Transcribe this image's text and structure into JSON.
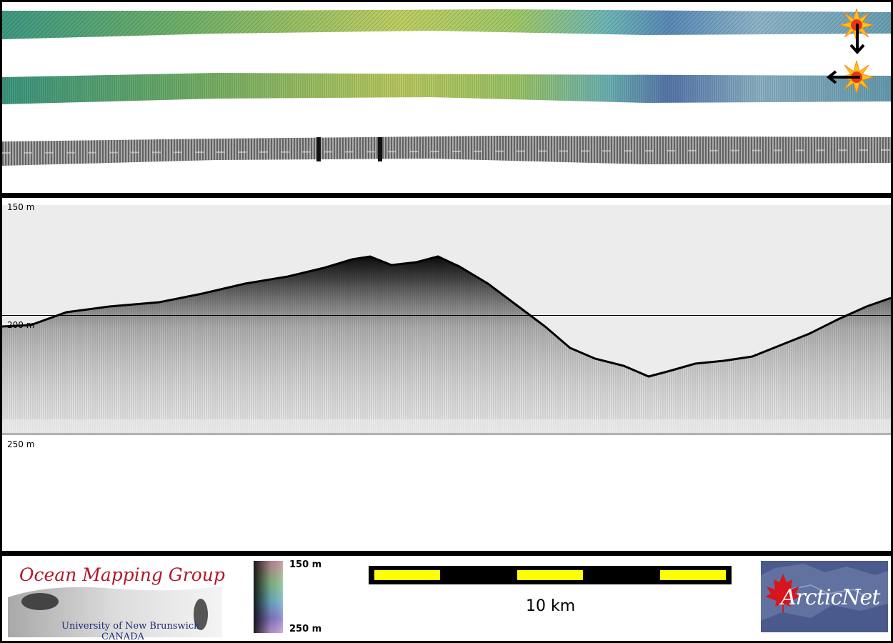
{
  "profile": {
    "depth_top_label": "150 m",
    "depth_mid_label": "200 m",
    "depth_bottom_label": "250 m"
  },
  "footer": {
    "logo_title": "Ocean Mapping Group",
    "logo_subtitle_1": "University of New Brunswick",
    "logo_subtitle_2": "CANADA",
    "colorbar_top_label": "150 m",
    "colorbar_bottom_label": "250 m",
    "scalebar_label": "10 km",
    "partner_logo_text": "ArcticNet"
  },
  "colors": {
    "frame": "#000000",
    "scalebar_yellow": "#ffff00",
    "scalebar_black": "#000000",
    "omg_red": "#b3162a",
    "omg_blue": "#1e2a7a",
    "arcticnet_bg": "#4a5a8c",
    "maple_red": "#d8141c"
  },
  "icons": [
    "sun-marker-icon",
    "arrow-down-icon",
    "arrow-left-icon",
    "maple-leaf-icon"
  ]
}
